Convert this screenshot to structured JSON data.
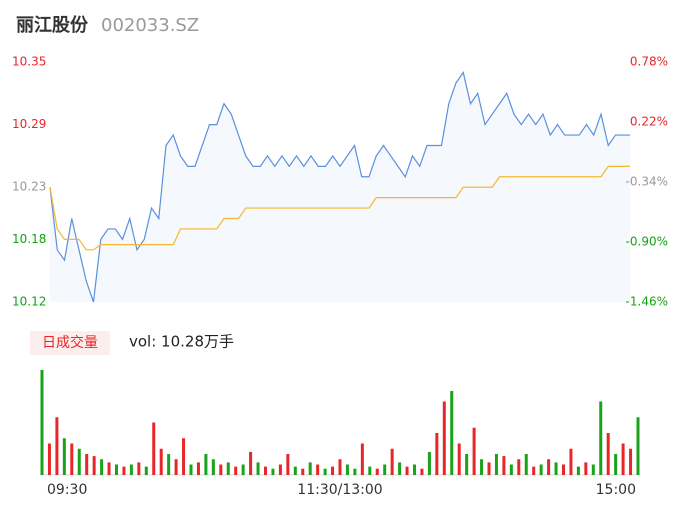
{
  "chart_data": [
    {
      "type": "line",
      "title": "丽江股份",
      "subtitle": "002033.SZ",
      "xlim": [
        0,
        80
      ],
      "ylim": [
        10.12,
        10.35
      ],
      "yticks": [
        10.12,
        10.18,
        10.23,
        10.29,
        10.35
      ],
      "ytick_colors": [
        "#13a313",
        "#13a313",
        "#999999",
        "#e8262a",
        "#e8262a"
      ],
      "y2lim": [
        -1.46,
        0.78
      ],
      "y2ticks": [
        {
          "value": -1.46,
          "label": "-1.46%"
        },
        {
          "value": -0.9,
          "label": "-0.90%"
        },
        {
          "value": -0.34,
          "label": "-0.34%"
        },
        {
          "value": 0.22,
          "label": "0.22%"
        },
        {
          "value": 0.78,
          "label": "0.78%"
        }
      ],
      "series": [
        {
          "color": "#5b8fe0",
          "values": [
            10.23,
            10.17,
            10.16,
            10.2,
            10.17,
            10.14,
            10.12,
            10.18,
            10.19,
            10.19,
            10.18,
            10.2,
            10.17,
            10.18,
            10.21,
            10.2,
            10.27,
            10.28,
            10.26,
            10.25,
            10.25,
            10.27,
            10.29,
            10.29,
            10.31,
            10.3,
            10.28,
            10.26,
            10.25,
            10.25,
            10.26,
            10.25,
            10.26,
            10.25,
            10.26,
            10.25,
            10.26,
            10.25,
            10.25,
            10.26,
            10.25,
            10.26,
            10.27,
            10.24,
            10.24,
            10.26,
            10.27,
            10.26,
            10.25,
            10.24,
            10.26,
            10.25,
            10.27,
            10.27,
            10.27,
            10.31,
            10.33,
            10.34,
            10.31,
            10.32,
            10.29,
            10.3,
            10.31,
            10.32,
            10.3,
            10.29,
            10.3,
            10.29,
            10.3,
            10.28,
            10.29,
            10.28,
            10.28,
            10.28,
            10.29,
            10.28,
            10.3,
            10.27,
            10.28,
            10.28,
            10.28
          ]
        },
        {
          "color": "#f5b731",
          "values": [
            10.23,
            10.19,
            10.18,
            10.18,
            10.18,
            10.17,
            10.17,
            10.175,
            10.175,
            10.175,
            10.175,
            10.175,
            10.175,
            10.175,
            10.175,
            10.175,
            10.175,
            10.175,
            10.19,
            10.19,
            10.19,
            10.19,
            10.19,
            10.19,
            10.2,
            10.2,
            10.2,
            10.21,
            10.21,
            10.21,
            10.21,
            10.21,
            10.21,
            10.21,
            10.21,
            10.21,
            10.21,
            10.21,
            10.21,
            10.21,
            10.21,
            10.21,
            10.21,
            10.21,
            10.21,
            10.22,
            10.22,
            10.22,
            10.22,
            10.22,
            10.22,
            10.22,
            10.22,
            10.22,
            10.22,
            10.22,
            10.22,
            10.23,
            10.23,
            10.23,
            10.23,
            10.23,
            10.24,
            10.24,
            10.24,
            10.24,
            10.24,
            10.24,
            10.24,
            10.24,
            10.24,
            10.24,
            10.24,
            10.24,
            10.24,
            10.24,
            10.24,
            10.25,
            10.25,
            10.25,
            10.25
          ]
        }
      ]
    },
    {
      "type": "bar",
      "title": "日成交量",
      "subtitle": "vol: 10.28万手",
      "xlim": [
        0,
        80
      ],
      "xticks": [
        {
          "value": 0,
          "label": "09:30"
        },
        {
          "value": 40,
          "label": "11:30/13:00"
        },
        {
          "value": 80,
          "label": "15:00"
        }
      ],
      "ylim": [
        0,
        100
      ],
      "values": [
        100,
        30,
        55,
        35,
        30,
        25,
        20,
        18,
        15,
        12,
        10,
        8,
        10,
        12,
        8,
        50,
        25,
        20,
        15,
        35,
        10,
        12,
        20,
        15,
        10,
        12,
        8,
        10,
        22,
        12,
        8,
        6,
        10,
        20,
        8,
        6,
        12,
        10,
        6,
        8,
        15,
        10,
        6,
        30,
        8,
        6,
        10,
        25,
        12,
        8,
        10,
        6,
        22,
        40,
        70,
        80,
        30,
        20,
        45,
        15,
        12,
        20,
        18,
        10,
        15,
        20,
        8,
        10,
        15,
        12,
        10,
        25,
        8,
        12,
        10,
        70,
        40,
        20,
        30,
        25,
        55
      ],
      "colors": [
        "#1aa31a",
        "#e8262a",
        "#e8262a",
        "#1aa31a",
        "#e8262a",
        "#1aa31a",
        "#e8262a",
        "#e8262a",
        "#1aa31a",
        "#e8262a",
        "#1aa31a",
        "#e8262a",
        "#1aa31a",
        "#e8262a",
        "#1aa31a",
        "#e8262a",
        "#e8262a",
        "#1aa31a",
        "#e8262a",
        "#e8262a",
        "#1aa31a",
        "#e8262a",
        "#1aa31a",
        "#1aa31a",
        "#e8262a",
        "#1aa31a",
        "#e8262a",
        "#1aa31a",
        "#e8262a",
        "#1aa31a",
        "#e8262a",
        "#1aa31a",
        "#e8262a",
        "#e8262a",
        "#1aa31a",
        "#e8262a",
        "#1aa31a",
        "#e8262a",
        "#1aa31a",
        "#e8262a",
        "#e8262a",
        "#1aa31a",
        "#1aa31a",
        "#e8262a",
        "#1aa31a",
        "#e8262a",
        "#1aa31a",
        "#e8262a",
        "#1aa31a",
        "#e8262a",
        "#1aa31a",
        "#e8262a",
        "#1aa31a",
        "#e8262a",
        "#e8262a",
        "#1aa31a",
        "#e8262a",
        "#1aa31a",
        "#e8262a",
        "#1aa31a",
        "#e8262a",
        "#1aa31a",
        "#e8262a",
        "#1aa31a",
        "#e8262a",
        "#1aa31a",
        "#e8262a",
        "#1aa31a",
        "#e8262a",
        "#1aa31a",
        "#e8262a",
        "#e8262a",
        "#1aa31a",
        "#e8262a",
        "#1aa31a",
        "#1aa31a",
        "#e8262a",
        "#1aa31a",
        "#e8262a",
        "#e8262a",
        "#1aa31a"
      ]
    }
  ]
}
